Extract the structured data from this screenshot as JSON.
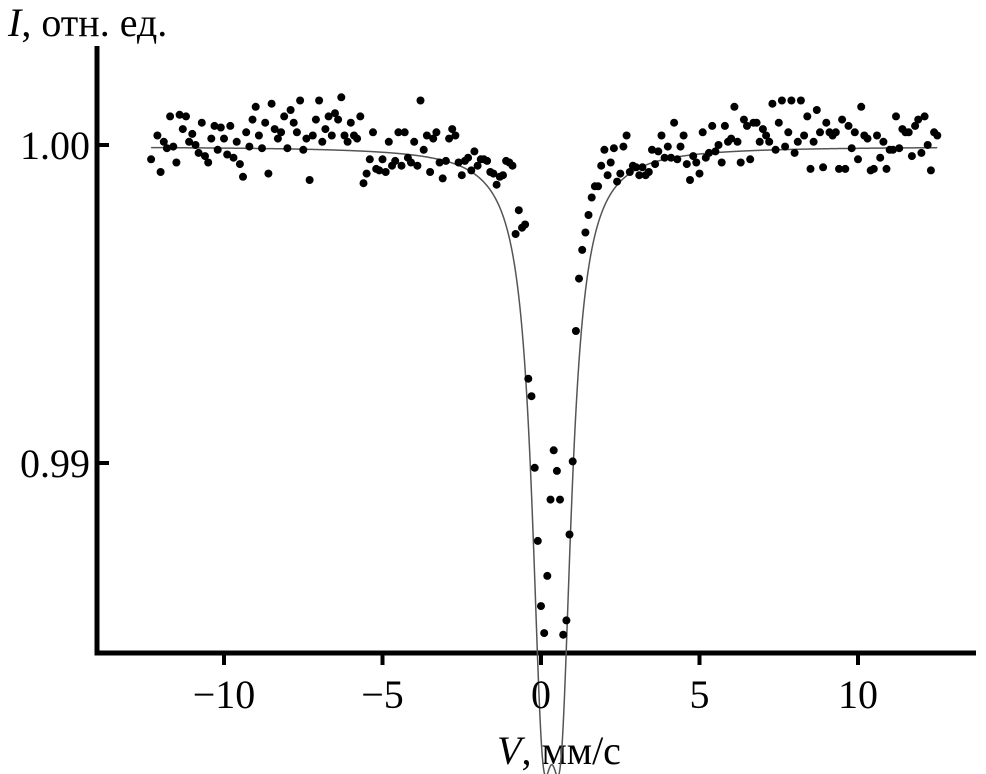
{
  "chart_data": {
    "type": "scatter",
    "title": "",
    "ylabel_symbol": "I",
    "ylabel_unit": ", отн. ед.",
    "xlabel_symbol": "V",
    "xlabel_unit": ", мм/с",
    "xlim": [
      -12.5,
      12.7
    ],
    "ylim": [
      0.9841,
      1.0031
    ],
    "x_ticks": [
      {
        "value": -10,
        "label": "−10"
      },
      {
        "value": -5,
        "label": "−5"
      },
      {
        "value": 0,
        "label": "0"
      },
      {
        "value": 5,
        "label": "5"
      },
      {
        "value": 10,
        "label": "10"
      }
    ],
    "y_ticks": [
      {
        "value": 1.0,
        "label": "1.00"
      },
      {
        "value": 0.99,
        "label": "0.99"
      }
    ],
    "grid": false,
    "fit_curve": {
      "baseline": 0.99995,
      "lines": [
        {
          "center": 0.05,
          "depth": 0.01435,
          "hwhm": 0.42
        },
        {
          "center": 0.63,
          "depth": 0.01435,
          "hwhm": 0.42
        }
      ]
    },
    "series": [
      {
        "points": [
          [
            -12.3,
            0.99955
          ],
          [
            -12.1,
            1.0003
          ],
          [
            -12.0,
            0.99915
          ],
          [
            -11.9,
            1.0001
          ],
          [
            -11.8,
            0.9999
          ],
          [
            -11.7,
            1.0009
          ],
          [
            -11.6,
            0.99995
          ],
          [
            -11.5,
            0.99945
          ],
          [
            -11.4,
            1.00095
          ],
          [
            -11.3,
            1.0005
          ],
          [
            -11.2,
            1.0009
          ],
          [
            -11.1,
            1.0001
          ],
          [
            -11.0,
            1.00035
          ],
          [
            -10.9,
            1.0
          ],
          [
            -10.8,
            0.99975
          ],
          [
            -10.7,
            1.0007
          ],
          [
            -10.6,
            0.99965
          ],
          [
            -10.5,
            0.99945
          ],
          [
            -10.4,
            1.0002
          ],
          [
            -10.3,
            1.0006
          ],
          [
            -10.2,
            0.99985
          ],
          [
            -10.1,
            1.00055
          ],
          [
            -10.0,
            1.0002
          ],
          [
            -9.9,
            0.9997
          ],
          [
            -9.8,
            1.0006
          ],
          [
            -9.7,
            0.9996
          ],
          [
            -9.6,
            1.0001
          ],
          [
            -9.5,
            0.9994
          ],
          [
            -9.4,
            0.999
          ],
          [
            -9.3,
            1.0004
          ],
          [
            -9.2,
            0.99995
          ],
          [
            -9.1,
            1.0008
          ],
          [
            -9.0,
            1.0012
          ],
          [
            -8.9,
            1.0003
          ],
          [
            -8.8,
            0.9999
          ],
          [
            -8.7,
            1.0007
          ],
          [
            -8.6,
            0.9991
          ],
          [
            -8.5,
            1.0013
          ],
          [
            -8.4,
            1.0005
          ],
          [
            -8.3,
            1.0002
          ],
          [
            -8.2,
            1.0004
          ],
          [
            -8.1,
            1.0009
          ],
          [
            -8.0,
            0.9999
          ],
          [
            -7.9,
            1.0011
          ],
          [
            -7.8,
            1.0007
          ],
          [
            -7.7,
            1.0004
          ],
          [
            -7.6,
            1.0014
          ],
          [
            -7.5,
            0.99985
          ],
          [
            -7.4,
            1.0002
          ],
          [
            -7.3,
            0.9989
          ],
          [
            -7.2,
            1.0003
          ],
          [
            -7.1,
            1.0008
          ],
          [
            -7.0,
            1.0014
          ],
          [
            -6.9,
            1.0001
          ],
          [
            -6.8,
            1.0005
          ],
          [
            -6.7,
            1.0009
          ],
          [
            -6.6,
            1.0003
          ],
          [
            -6.5,
            1.001
          ],
          [
            -6.4,
            1.0008
          ],
          [
            -6.3,
            1.0015
          ],
          [
            -6.2,
            1.0003
          ],
          [
            -6.1,
            1.0001
          ],
          [
            -6.0,
            1.0007
          ],
          [
            -5.9,
            1.0003
          ],
          [
            -5.8,
            1.0002
          ],
          [
            -5.7,
            1.0009
          ],
          [
            -5.6,
            0.9988
          ],
          [
            -5.5,
            0.9991
          ],
          [
            -5.4,
            0.99955
          ],
          [
            -5.3,
            1.0004
          ],
          [
            -5.2,
            0.99925
          ],
          [
            -5.1,
            0.9992
          ],
          [
            -5.0,
            0.99955
          ],
          [
            -4.9,
            0.99915
          ],
          [
            -4.8,
            1.0001
          ],
          [
            -4.7,
            0.99935
          ],
          [
            -4.6,
            0.9995
          ],
          [
            -4.5,
            1.0004
          ],
          [
            -4.4,
            0.99935
          ],
          [
            -4.3,
            1.0004
          ],
          [
            -4.2,
            0.9996
          ],
          [
            -4.1,
            0.99945
          ],
          [
            -4.0,
            1.0001
          ],
          [
            -3.9,
            0.99935
          ],
          [
            -3.8,
            1.0014
          ],
          [
            -3.7,
            0.99985
          ],
          [
            -3.6,
            1.0003
          ],
          [
            -3.5,
            0.99915
          ],
          [
            -3.4,
            1.0002
          ],
          [
            -3.3,
            1.0004
          ],
          [
            -3.2,
            0.99945
          ],
          [
            -3.1,
            0.99895
          ],
          [
            -3.0,
            0.9995
          ],
          [
            -2.9,
            1.0002
          ],
          [
            -2.8,
            1.0005
          ],
          [
            -2.7,
            1.0003
          ],
          [
            -2.6,
            0.99945
          ],
          [
            -2.5,
            0.99905
          ],
          [
            -2.4,
            0.9995
          ],
          [
            -2.3,
            0.9996
          ],
          [
            -2.2,
            0.9992
          ],
          [
            -2.1,
            0.9998
          ],
          [
            -2.0,
            0.99935
          ],
          [
            -1.9,
            0.99955
          ],
          [
            -1.8,
            0.99955
          ],
          [
            -1.7,
            0.9995
          ],
          [
            -1.6,
            0.99915
          ],
          [
            -1.5,
            0.9991
          ],
          [
            -1.4,
            0.99875
          ],
          [
            -1.3,
            0.999
          ],
          [
            -1.2,
            0.99905
          ],
          [
            -1.1,
            0.9995
          ],
          [
            -1.0,
            0.99945
          ],
          [
            -0.9,
            0.99935
          ],
          [
            -0.8,
            0.9972
          ],
          [
            -0.7,
            0.99795
          ],
          [
            -0.6,
            0.9974
          ],
          [
            -0.5,
            0.9975
          ],
          [
            -0.4,
            0.99265
          ],
          [
            -0.3,
            0.9921
          ],
          [
            -0.2,
            0.98985
          ],
          [
            -0.1,
            0.98755
          ],
          [
            0.0,
            0.9855
          ],
          [
            0.1,
            0.98465
          ],
          [
            0.2,
            0.98645
          ],
          [
            0.3,
            0.98885
          ],
          [
            0.4,
            0.9904
          ],
          [
            0.5,
            0.98975
          ],
          [
            0.6,
            0.98885
          ],
          [
            0.7,
            0.9846
          ],
          [
            0.8,
            0.98505
          ],
          [
            0.9,
            0.98775
          ],
          [
            1.0,
            0.99005
          ],
          [
            1.1,
            0.99415
          ],
          [
            1.2,
            0.9958
          ],
          [
            1.3,
            0.9967
          ],
          [
            1.4,
            0.99725
          ],
          [
            1.5,
            0.9978
          ],
          [
            1.6,
            0.99835
          ],
          [
            1.7,
            0.9987
          ],
          [
            1.8,
            0.9987
          ],
          [
            1.9,
            0.99935
          ],
          [
            2.0,
            0.99985
          ],
          [
            2.1,
            0.99905
          ],
          [
            2.2,
            0.99945
          ],
          [
            2.3,
            0.9999
          ],
          [
            2.4,
            0.99885
          ],
          [
            2.5,
            0.9991
          ],
          [
            2.6,
            0.99995
          ],
          [
            2.7,
            1.0003
          ],
          [
            2.8,
            0.99915
          ],
          [
            2.9,
            0.99935
          ],
          [
            3.0,
            0.9993
          ],
          [
            3.1,
            0.99905
          ],
          [
            3.2,
            0.9993
          ],
          [
            3.3,
            0.99905
          ],
          [
            3.4,
            0.99915
          ],
          [
            3.5,
            0.99985
          ],
          [
            3.6,
            0.9994
          ],
          [
            3.7,
            0.9998
          ],
          [
            3.8,
            1.0003
          ],
          [
            3.9,
            0.9996
          ],
          [
            4.0,
            0.99995
          ],
          [
            4.1,
            0.9996
          ],
          [
            4.2,
            1.0007
          ],
          [
            4.3,
            0.99955
          ],
          [
            4.4,
            0.99995
          ],
          [
            4.5,
            1.0003
          ],
          [
            4.6,
            0.9994
          ],
          [
            4.7,
            0.9989
          ],
          [
            4.8,
            0.99965
          ],
          [
            4.9,
            0.99945
          ],
          [
            5.0,
            0.9991
          ],
          [
            5.1,
            1.0004
          ],
          [
            5.2,
            0.9996
          ],
          [
            5.3,
            0.99975
          ],
          [
            5.4,
            1.0006
          ],
          [
            5.5,
            0.9998
          ],
          [
            5.6,
            1.0
          ],
          [
            5.7,
            0.99945
          ],
          [
            5.8,
            1.0006
          ],
          [
            5.9,
            1.0001
          ],
          [
            6.0,
            1.0002
          ],
          [
            6.1,
            1.0012
          ],
          [
            6.2,
            1.0001
          ],
          [
            6.3,
            0.99945
          ],
          [
            6.4,
            1.0008
          ],
          [
            6.5,
            1.0006
          ],
          [
            6.6,
            0.99955
          ],
          [
            6.7,
            1.0007
          ],
          [
            6.8,
            1.0007
          ],
          [
            6.9,
            1.0001
          ],
          [
            7.0,
            1.0005
          ],
          [
            7.1,
            1.0003
          ],
          [
            7.2,
            1.0001
          ],
          [
            7.3,
            1.0013
          ],
          [
            7.4,
            0.99985
          ],
          [
            7.5,
            1.0007
          ],
          [
            7.6,
            1.0014
          ],
          [
            7.7,
            0.99995
          ],
          [
            7.8,
            1.0004
          ],
          [
            7.9,
            1.0014
          ],
          [
            8.0,
            0.99975
          ],
          [
            8.1,
            1.0001
          ],
          [
            8.2,
            1.0014
          ],
          [
            8.3,
            1.0003
          ],
          [
            8.4,
            1.0009
          ],
          [
            8.5,
            0.99925
          ],
          [
            8.6,
            1.0001
          ],
          [
            8.7,
            1.0011
          ],
          [
            8.8,
            1.0004
          ],
          [
            8.9,
            0.9993
          ],
          [
            9.0,
            1.0007
          ],
          [
            9.1,
            1.0004
          ],
          [
            9.2,
            1.0003
          ],
          [
            9.3,
            1.0004
          ],
          [
            9.4,
            0.99925
          ],
          [
            9.5,
            1.0008
          ],
          [
            9.6,
            0.99925
          ],
          [
            9.7,
            1.0006
          ],
          [
            9.8,
            0.9999
          ],
          [
            9.9,
            1.0004
          ],
          [
            10.0,
            0.99955
          ],
          [
            10.1,
            1.0012
          ],
          [
            10.2,
            1.0003
          ],
          [
            10.3,
            1.0002
          ],
          [
            10.4,
            0.9992
          ],
          [
            10.5,
            0.99925
          ],
          [
            10.6,
            1.0003
          ],
          [
            10.7,
            0.9996
          ],
          [
            10.8,
            1.0001
          ],
          [
            10.9,
            0.99925
          ],
          [
            11.0,
            0.99985
          ],
          [
            11.1,
            0.99985
          ],
          [
            11.2,
            1.0009
          ],
          [
            11.3,
            0.9999
          ],
          [
            11.4,
            1.0005
          ],
          [
            11.5,
            1.0004
          ],
          [
            11.6,
            1.0004
          ],
          [
            11.7,
            0.99965
          ],
          [
            11.8,
            1.0006
          ],
          [
            11.9,
            1.0008
          ],
          [
            12.0,
            0.99975
          ],
          [
            12.1,
            1.0009
          ],
          [
            12.2,
            1.0
          ],
          [
            12.3,
            0.9992
          ],
          [
            12.4,
            1.0004
          ],
          [
            12.5,
            1.0003
          ]
        ]
      }
    ]
  }
}
